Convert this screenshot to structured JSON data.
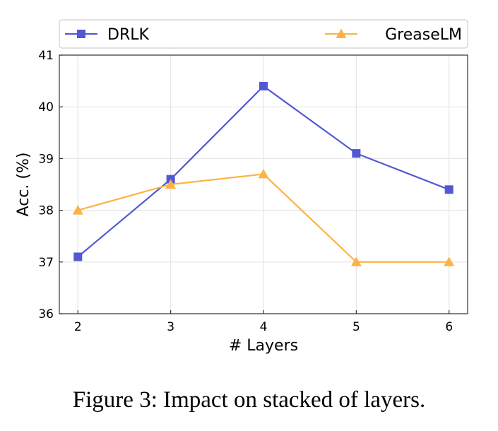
{
  "chart_data": {
    "type": "line",
    "x": [
      2,
      3,
      4,
      5,
      6
    ],
    "xlabel": "# Layers",
    "ylabel": "Acc. (%)",
    "xlim": [
      1.8,
      6.2
    ],
    "ylim": [
      36,
      41
    ],
    "yticks": [
      36,
      37,
      38,
      39,
      40,
      41
    ],
    "xticks": [
      2,
      3,
      4,
      5,
      6
    ],
    "grid": true,
    "legend_position": "top",
    "series": [
      {
        "name": "DRLK",
        "values": [
          37.1,
          38.6,
          40.4,
          39.1,
          38.4
        ],
        "color": "#5058d3",
        "marker": "square"
      },
      {
        "name": "GreaseLM",
        "values": [
          38.0,
          38.5,
          38.7,
          37.0,
          37.0
        ],
        "color": "#fbb444",
        "marker": "triangle"
      }
    ]
  },
  "caption": "Figure 3: Impact on stacked of layers."
}
